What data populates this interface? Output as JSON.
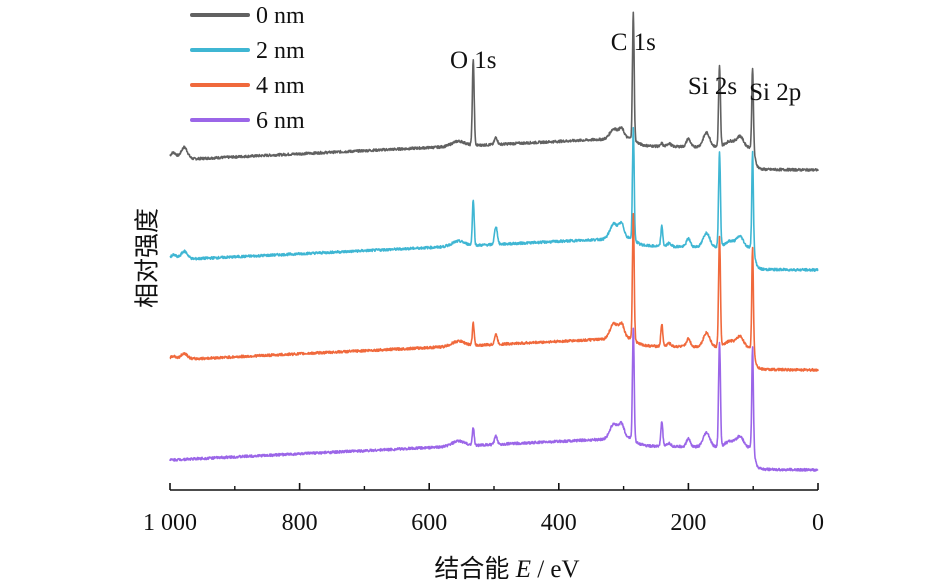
{
  "chart_data": {
    "type": "line",
    "xlabel_prefix": "结合能 ",
    "xlabel_var": "E",
    "xlabel_unit": " / eV",
    "ylabel": "相对强度",
    "xlim": [
      1000,
      0
    ],
    "x_ticks": [
      1000,
      800,
      600,
      400,
      200,
      0
    ],
    "x_tick_labels": [
      "1 000",
      "800",
      "600",
      "400",
      "200",
      "0"
    ],
    "legend_position": "top-left",
    "peak_labels": [
      {
        "text": "O 1s",
        "x": 532
      },
      {
        "text": "C 1s",
        "x": 285
      },
      {
        "text": "Si 2s",
        "x": 152
      },
      {
        "text": "Si 2p",
        "x": 100
      }
    ],
    "series": [
      {
        "name": "0 nm",
        "color": "#616161",
        "offset": 3,
        "features": {
          "end1000": 0.12,
          "end0": 0.0,
          "O1s": 0.85,
          "OKLL": 0.07,
          "C1s": 1.25,
          "ClKLL": 0.03,
          "Si2s": 0.8,
          "Si2p": 0.8,
          "pre": 0.1
        }
      },
      {
        "name": "2 nm",
        "color": "#3fb6d3",
        "offset": 2,
        "features": {
          "end1000": 0.08,
          "end0": 0.0,
          "O1s": 0.45,
          "OKLL": 0.18,
          "C1s": 1.1,
          "ClKLL": 0.2,
          "Si2s": 0.95,
          "Si2p": 0.95,
          "pre": 0.15
        }
      },
      {
        "name": "4 nm",
        "color": "#f0693c",
        "offset": 1,
        "features": {
          "end1000": 0.06,
          "end0": 0.0,
          "O1s": 0.22,
          "OKLL": 0.1,
          "C1s": 1.25,
          "ClKLL": 0.22,
          "Si2s": 1.1,
          "Si2p": 1.0,
          "pre": 0.15
        }
      },
      {
        "name": "6 nm",
        "color": "#9b66e8",
        "offset": 0,
        "features": {
          "end1000": 0.0,
          "end0": 0.0,
          "O1s": 0.18,
          "OKLL": 0.08,
          "C1s": 1.1,
          "ClKLL": 0.25,
          "Si2s": 1.05,
          "Si2p": 1.0,
          "pre": 0.15
        }
      }
    ]
  }
}
